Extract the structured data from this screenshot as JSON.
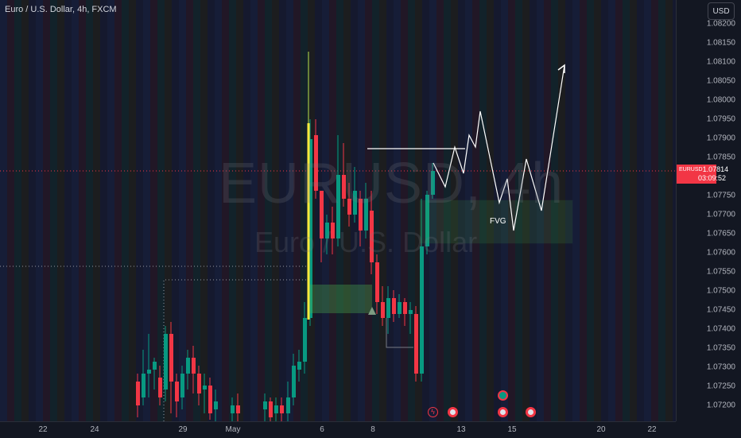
{
  "header": {
    "symbol_title": "Euro / U.S. Dollar, 4h, FXCM",
    "currency": "USD"
  },
  "watermark": {
    "symbol": "EURUSD, 4h",
    "name": "Euro / U.S. Dollar"
  },
  "price_axis": {
    "ticks": [
      "1.08200",
      "1.08150",
      "1.08100",
      "1.08050",
      "1.08000",
      "1.07950",
      "1.07900",
      "1.07850",
      "1.07750",
      "1.07700",
      "1.07650",
      "1.07600",
      "1.07550",
      "1.07500",
      "1.07450",
      "1.07400",
      "1.07350",
      "1.07300",
      "1.07250",
      "1.07200"
    ],
    "last_symbol": "EURUSD",
    "last_price": "1.07814",
    "countdown": "03:09:52",
    "last_color": "#f23645"
  },
  "time_axis": {
    "labels": [
      "22",
      "24",
      "29",
      "May",
      "6",
      "8",
      "13",
      "15",
      "20",
      "22"
    ]
  },
  "annotations": {
    "fvg_label": "FVG"
  },
  "colors": {
    "up": "#089981",
    "down": "#f23645",
    "background": "#131722",
    "zone": "#4caf50",
    "marker_line": "#ffeb3b"
  },
  "icons": [
    "flash-event-icon",
    "us-flag-event-icon",
    "globe-event-icon"
  ]
}
